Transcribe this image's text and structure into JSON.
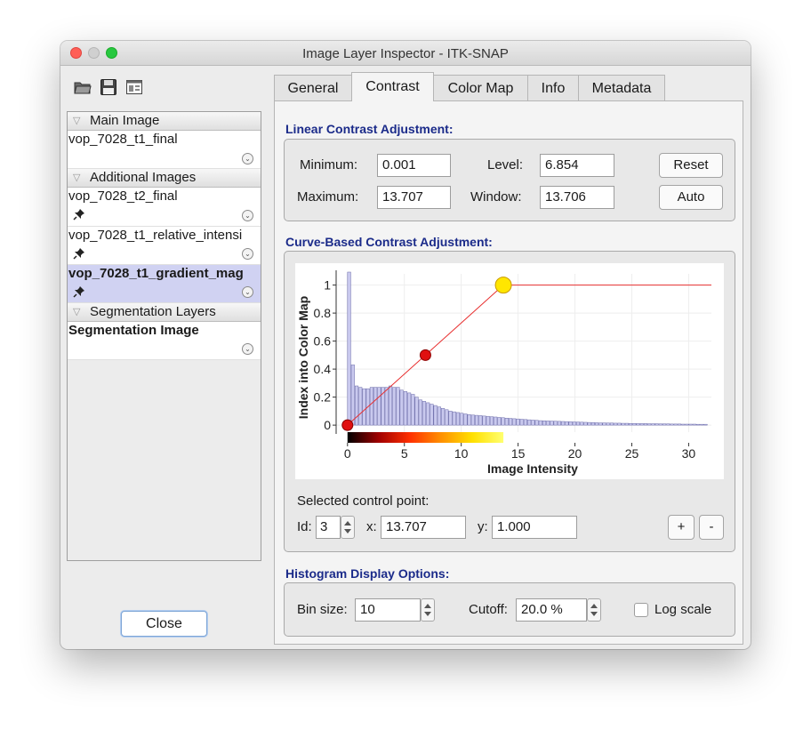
{
  "window": {
    "title": "Image Layer Inspector - ITK-SNAP"
  },
  "toolbar": {
    "icons": [
      "open-folder-icon",
      "save-disk-icon",
      "layout-icon"
    ]
  },
  "layers": {
    "groups": [
      {
        "label": "Main Image"
      },
      {
        "label": "Additional Images"
      },
      {
        "label": "Segmentation Layers"
      }
    ],
    "items": [
      {
        "name": "vop_7028_t1_final",
        "pinned": false,
        "selected": false
      },
      {
        "name": "vop_7028_t2_final",
        "pinned": true,
        "selected": false
      },
      {
        "name": "vop_7028_t1_relative_intensi",
        "pinned": true,
        "selected": false
      },
      {
        "name": "vop_7028_t1_gradient_mag",
        "pinned": true,
        "selected": true
      },
      {
        "name": "Segmentation Image",
        "pinned": false,
        "selected": false
      }
    ]
  },
  "close_label": "Close",
  "tabs": [
    {
      "label": "General",
      "active": false
    },
    {
      "label": "Contrast",
      "active": true
    },
    {
      "label": "Color Map",
      "active": false
    },
    {
      "label": "Info",
      "active": false
    },
    {
      "label": "Metadata",
      "active": false
    }
  ],
  "linear": {
    "title": "Linear Contrast Adjustment:",
    "minimum_label": "Minimum:",
    "minimum": "0.001",
    "maximum_label": "Maximum:",
    "maximum": "13.707",
    "level_label": "Level:",
    "level": "6.854",
    "window_label": "Window:",
    "window": "13.706",
    "reset_label": "Reset",
    "auto_label": "Auto"
  },
  "curve": {
    "title": "Curve-Based Contrast Adjustment:",
    "selected_label": "Selected control point:",
    "id_label": "Id:",
    "id": "3",
    "x_label": "x:",
    "x": "13.707",
    "y_label": "y:",
    "y": "1.000",
    "plus_label": "+",
    "minus_label": "-"
  },
  "histogram": {
    "title": "Histogram Display Options:",
    "bin_label": "Bin size:",
    "bin": "10",
    "cutoff_label": "Cutoff:",
    "cutoff": "20.0 %",
    "log_label": "Log scale",
    "log_checked": false
  },
  "colors": {
    "section_title": "#1b2b8a",
    "selection": "#d0d2f2",
    "curve": "#e83030",
    "hist_bar": "#c9c9ee"
  },
  "chart_data": {
    "type": "line",
    "xlabel": "Image Intensity",
    "ylabel": "Index into Color Map",
    "xlim": [
      -1,
      32
    ],
    "ylim": [
      -0.05,
      1.08
    ],
    "x_ticks": [
      0,
      5,
      10,
      15,
      20,
      25,
      30
    ],
    "y_ticks": [
      0,
      0.2,
      0.4,
      0.6,
      0.8,
      1
    ],
    "x_tick_labels": [
      "0",
      "5",
      "10",
      "15",
      "20",
      "25",
      "30"
    ],
    "y_tick_labels": [
      "0",
      "0.2",
      "0.4",
      "0.6",
      "0.8",
      "1"
    ],
    "curve": {
      "x": [
        0.001,
        6.854,
        13.707
      ],
      "y": [
        0,
        0.5,
        1.0
      ],
      "extend_to": 32
    },
    "control_points": [
      {
        "x": 0.001,
        "y": 0,
        "selected": false
      },
      {
        "x": 6.854,
        "y": 0.5,
        "selected": false
      },
      {
        "x": 13.707,
        "y": 1.0,
        "selected": true
      }
    ],
    "histogram": {
      "bin_width": 0.33,
      "counts": [
        1.2,
        0.43,
        0.28,
        0.27,
        0.26,
        0.26,
        0.27,
        0.27,
        0.27,
        0.27,
        0.27,
        0.28,
        0.27,
        0.27,
        0.25,
        0.24,
        0.23,
        0.22,
        0.2,
        0.18,
        0.17,
        0.16,
        0.15,
        0.14,
        0.13,
        0.12,
        0.11,
        0.1,
        0.095,
        0.09,
        0.085,
        0.08,
        0.075,
        0.072,
        0.07,
        0.068,
        0.065,
        0.063,
        0.06,
        0.058,
        0.055,
        0.053,
        0.05,
        0.048,
        0.046,
        0.044,
        0.042,
        0.04,
        0.038,
        0.036,
        0.034,
        0.032,
        0.031,
        0.03,
        0.029,
        0.028,
        0.027,
        0.026,
        0.025,
        0.024,
        0.023,
        0.022,
        0.021,
        0.02,
        0.019,
        0.018,
        0.017,
        0.016,
        0.016,
        0.015,
        0.015,
        0.014,
        0.014,
        0.013,
        0.013,
        0.012,
        0.012,
        0.011,
        0.011,
        0.011,
        0.01,
        0.01,
        0.01,
        0.009,
        0.009,
        0.009,
        0.008,
        0.008,
        0.008,
        0.007,
        0.007,
        0.007,
        0.007,
        0.006,
        0.006,
        0.006
      ]
    },
    "colorbar": {
      "from": 0,
      "to": 13.707,
      "stops": [
        "#000000",
        "#a00000",
        "#ff3000",
        "#ff9000",
        "#ffe000",
        "#ffff70"
      ]
    }
  }
}
